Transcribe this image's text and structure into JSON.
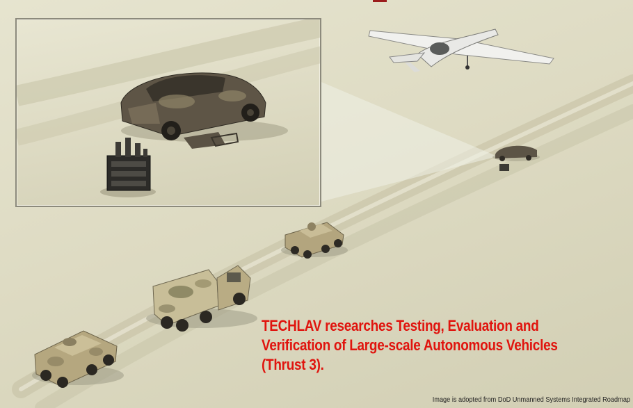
{
  "caption": {
    "line1": "TECHLAV researches Testing, Evaluation and",
    "line2": "Verification of Large-scale Autonomous Vehicles",
    "line3": "(Thrust 3)."
  },
  "credit": "Image is adopted from DoD Unmanned Systems Integrated Roadmap",
  "colors": {
    "caption": "#e0140e",
    "desert": "#dedbc3",
    "camo": "#b9ab85"
  }
}
